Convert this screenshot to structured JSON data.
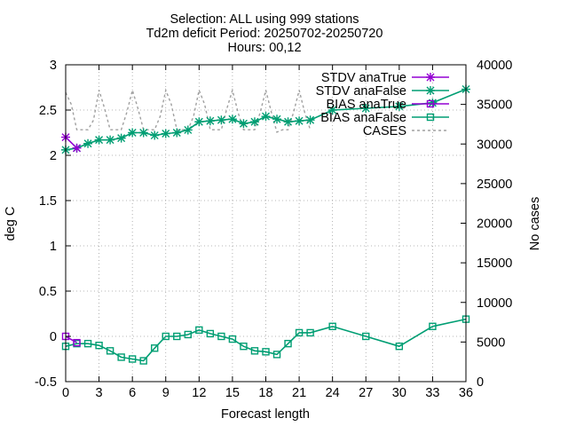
{
  "chart_data": {
    "type": "line",
    "title_lines": [
      "Selection: ALL using   999 stations",
      "Td2m deficit   Period: 20250702-20250720",
      "Hours: 00,12"
    ],
    "xlabel": "Forecast length",
    "ylabel": "deg C",
    "y2label": "No cases",
    "xlim": [
      0,
      36
    ],
    "ylim": [
      -0.5,
      3
    ],
    "y2lim": [
      0,
      40000
    ],
    "x_ticks": [
      0,
      3,
      6,
      9,
      12,
      15,
      18,
      21,
      24,
      27,
      30,
      33,
      36
    ],
    "y_ticks": [
      -0.5,
      0,
      0.5,
      1,
      1.5,
      2,
      2.5,
      3
    ],
    "y_tick_labels": [
      "-0.5",
      "0",
      "0.5",
      "1",
      "1.5",
      "2",
      "2.5",
      "3"
    ],
    "y2_ticks": [
      0,
      5000,
      10000,
      15000,
      20000,
      25000,
      30000,
      35000,
      40000
    ],
    "grid": true,
    "legend_position": "top-right",
    "series": [
      {
        "name": "STDV anaTrue",
        "axis": "y1",
        "color": "#9400d3",
        "marker": "star",
        "dash": "",
        "x": [
          0,
          1
        ],
        "values": [
          2.2,
          2.08
        ]
      },
      {
        "name": "STDV anaFalse",
        "axis": "y1",
        "color": "#009e73",
        "marker": "star",
        "dash": "",
        "x": [
          0,
          1,
          2,
          3,
          4,
          5,
          6,
          7,
          8,
          9,
          10,
          11,
          12,
          13,
          14,
          15,
          16,
          17,
          18,
          19,
          20,
          21,
          22,
          24,
          27,
          30,
          33,
          36
        ],
        "values": [
          2.06,
          2.08,
          2.13,
          2.17,
          2.17,
          2.19,
          2.25,
          2.25,
          2.22,
          2.24,
          2.25,
          2.28,
          2.37,
          2.38,
          2.39,
          2.4,
          2.35,
          2.37,
          2.43,
          2.4,
          2.37,
          2.38,
          2.39,
          2.5,
          2.52,
          2.54,
          2.58,
          2.73
        ]
      },
      {
        "name": "BIAS anaTrue",
        "axis": "y1",
        "color": "#9400d3",
        "marker": "square",
        "dash": "",
        "x": [
          0,
          1
        ],
        "values": [
          0.0,
          -0.07
        ]
      },
      {
        "name": "BIAS anaFalse",
        "axis": "y1",
        "color": "#009e73",
        "marker": "square",
        "dash": "",
        "x": [
          0,
          1,
          2,
          3,
          4,
          5,
          6,
          7,
          8,
          9,
          10,
          11,
          12,
          13,
          14,
          15,
          16,
          17,
          18,
          19,
          20,
          21,
          22,
          24,
          27,
          30,
          33,
          36
        ],
        "values": [
          -0.11,
          -0.08,
          -0.08,
          -0.1,
          -0.16,
          -0.23,
          -0.25,
          -0.27,
          -0.13,
          0.0,
          0.0,
          0.02,
          0.07,
          0.03,
          0.0,
          -0.03,
          -0.11,
          -0.16,
          -0.17,
          -0.2,
          -0.08,
          0.04,
          0.04,
          0.11,
          0.0,
          -0.11,
          0.11,
          0.19
        ]
      },
      {
        "name": "CASES",
        "axis": "y2",
        "color": "#a0a0a0",
        "marker": "none",
        "dash": "3,3",
        "x": [
          0,
          0.5,
          1,
          1.5,
          2,
          2.5,
          3,
          3.5,
          4,
          4.5,
          5,
          5.5,
          6,
          6.5,
          7,
          7.5,
          8,
          8.5,
          9,
          9.5,
          10,
          10.5,
          11,
          11.5,
          12,
          12.5,
          13,
          13.5,
          14,
          14.5,
          15,
          15.5,
          16,
          16.5,
          17,
          17.5,
          18,
          18.5,
          19,
          19.5,
          20,
          20.5,
          21,
          21.5,
          22
        ],
        "values": [
          36500,
          35000,
          31800,
          31800,
          31800,
          33000,
          36800,
          34500,
          31800,
          31800,
          31800,
          34000,
          36800,
          34500,
          31800,
          31800,
          31800,
          33500,
          36800,
          35000,
          31800,
          31800,
          31800,
          33500,
          36800,
          35000,
          31800,
          31800,
          31800,
          34500,
          36800,
          34000,
          31800,
          31800,
          31800,
          34000,
          36800,
          34000,
          31500,
          31800,
          31800,
          34000,
          36800,
          34000,
          31800
        ]
      }
    ]
  }
}
